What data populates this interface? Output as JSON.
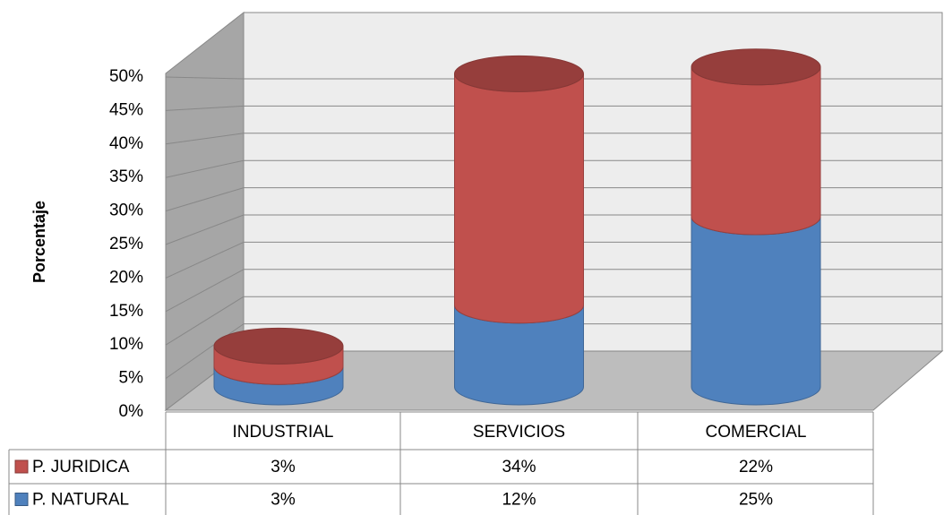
{
  "chart_data": {
    "type": "bar3d_stacked_cylinder",
    "y_label": "Porcentaje",
    "categories": [
      "INDUSTRIAL",
      "SERVICIOS",
      "COMERCIAL"
    ],
    "series": [
      {
        "name": "P. NATURAL",
        "color": "#4f81bd",
        "values": [
          3,
          12,
          25
        ],
        "value_labels": [
          "3%",
          "12%",
          "25%"
        ]
      },
      {
        "name": "P. JURIDICA",
        "color": "#c0504d",
        "values": [
          3,
          34,
          22
        ],
        "value_labels": [
          "3%",
          "34%",
          "22%"
        ]
      }
    ],
    "ylim": [
      0,
      50
    ],
    "yticks": [
      {
        "value": 0,
        "label": "0%"
      },
      {
        "value": 5,
        "label": "5%"
      },
      {
        "value": 10,
        "label": "10%"
      },
      {
        "value": 15,
        "label": "15%"
      },
      {
        "value": 20,
        "label": "20%"
      },
      {
        "value": 25,
        "label": "25%"
      },
      {
        "value": 30,
        "label": "30%"
      },
      {
        "value": 35,
        "label": "35%"
      },
      {
        "value": 40,
        "label": "40%"
      },
      {
        "value": 45,
        "label": "45%"
      },
      {
        "value": 50,
        "label": "50%"
      }
    ],
    "grid": true
  }
}
